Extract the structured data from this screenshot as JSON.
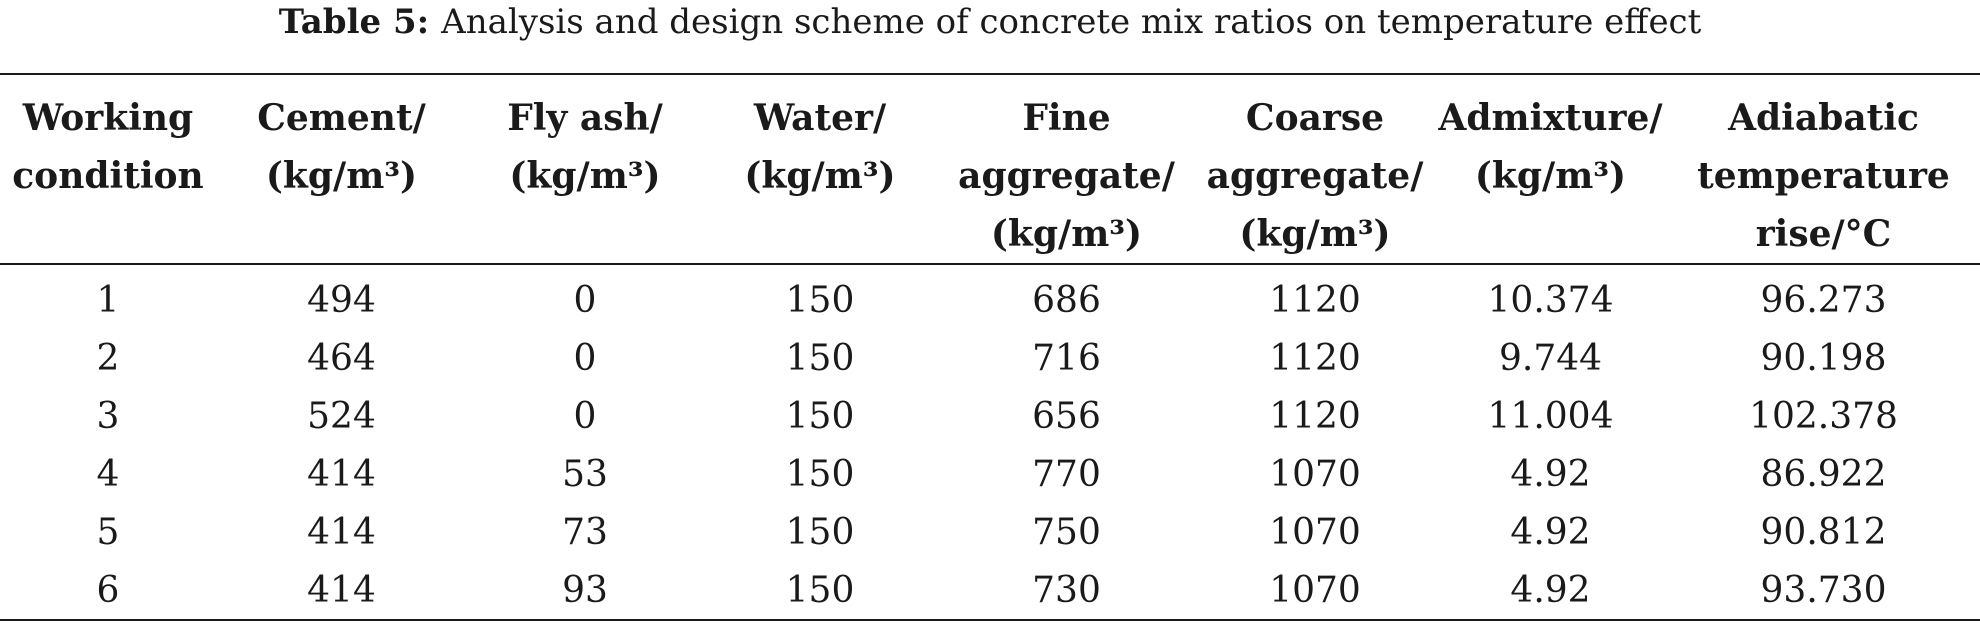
{
  "caption": {
    "label": "Table 5:",
    "text": "Analysis and design scheme of concrete mix ratios on temperature effect"
  },
  "table": {
    "headers": [
      [
        "Working",
        "condition"
      ],
      [
        "Cement/",
        "(kg/m³)"
      ],
      [
        "Fly ash/",
        "(kg/m³)"
      ],
      [
        "Water/",
        "(kg/m³)"
      ],
      [
        "Fine",
        "aggregate/",
        "(kg/m³)"
      ],
      [
        "Coarse",
        "aggregate/",
        "(kg/m³)"
      ],
      [
        "Admixture/",
        "(kg/m³)"
      ],
      [
        "Adiabatic",
        "temperature",
        "rise/°C"
      ]
    ],
    "rows": [
      [
        "1",
        "494",
        "0",
        "150",
        "686",
        "1120",
        "10.374",
        "96.273"
      ],
      [
        "2",
        "464",
        "0",
        "150",
        "716",
        "1120",
        "9.744",
        "90.198"
      ],
      [
        "3",
        "524",
        "0",
        "150",
        "656",
        "1120",
        "11.004",
        "102.378"
      ],
      [
        "4",
        "414",
        "53",
        "150",
        "770",
        "1070",
        "4.92",
        "86.922"
      ],
      [
        "5",
        "414",
        "73",
        "150",
        "750",
        "1070",
        "4.92",
        "90.812"
      ],
      [
        "6",
        "414",
        "93",
        "150",
        "730",
        "1070",
        "4.92",
        "93.730"
      ]
    ]
  }
}
